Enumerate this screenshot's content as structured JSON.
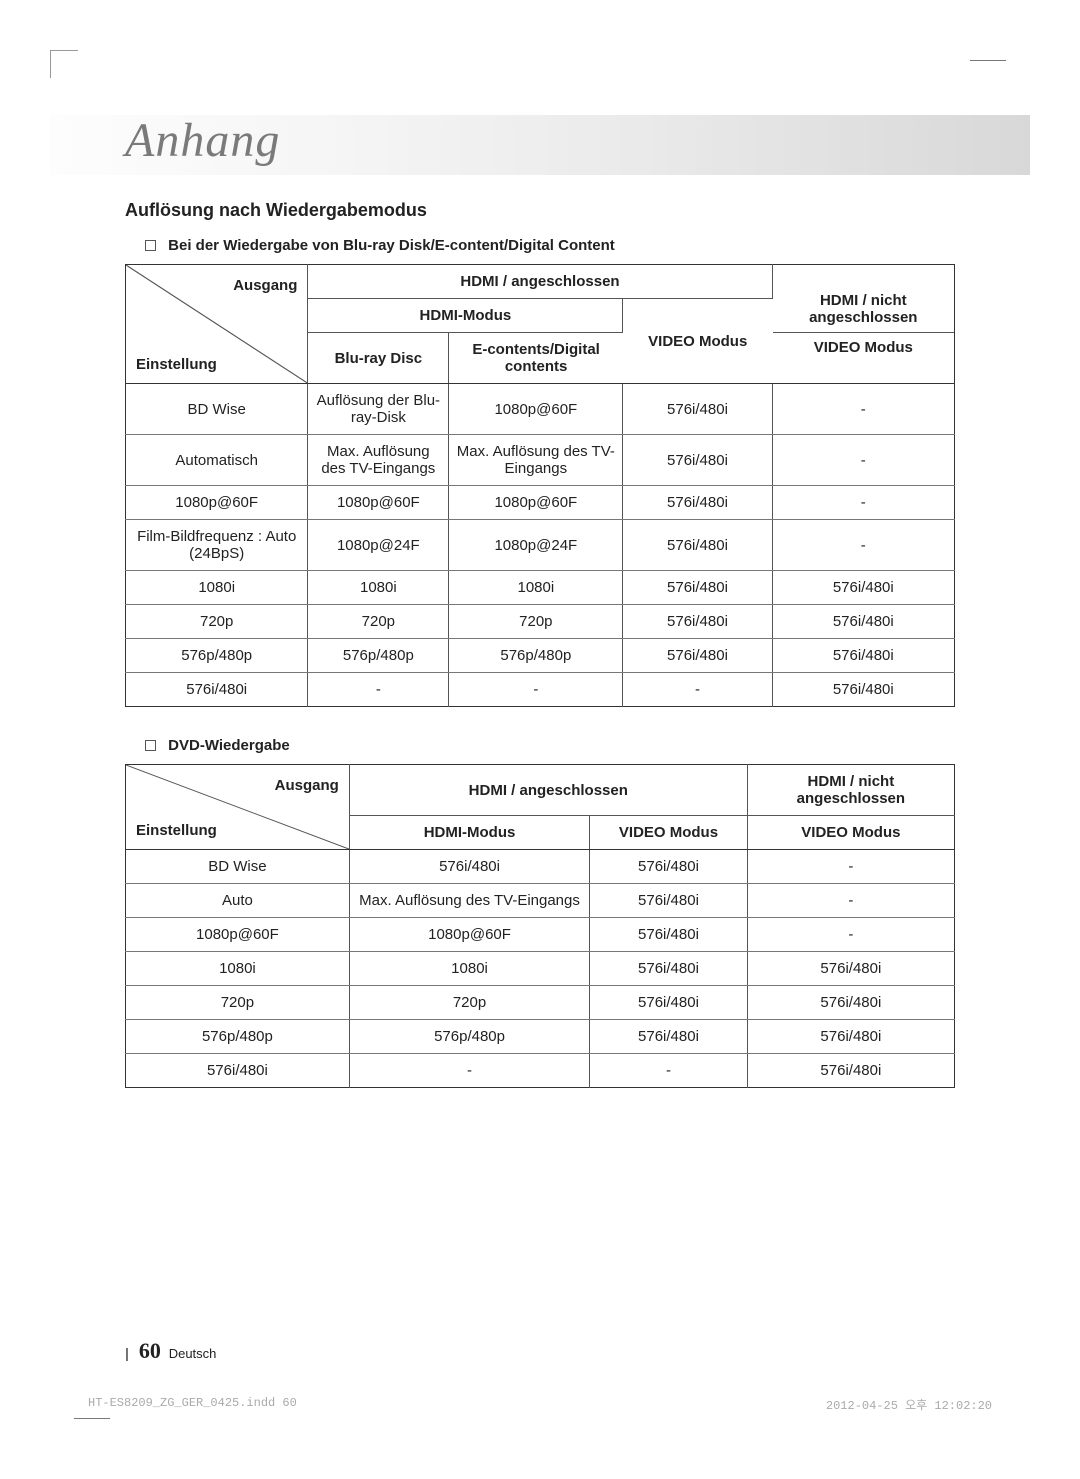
{
  "chapter_title": "Anhang",
  "section_title": "Auflösung nach Wiedergabemodus",
  "sub1_title": "Bei der Wiedergabe von Blu-ray Disk/E-content/Digital Content",
  "sub2_title": "DVD-Wiedergabe",
  "diag_top": "Ausgang",
  "diag_bot": "Einstellung",
  "t1": {
    "col_widths_pct": [
      22,
      17,
      21,
      18,
      22
    ],
    "h_hdmi_conn": "HDMI / angeschlossen",
    "h_hdmi_not": "HDMI / nicht angeschlossen",
    "h_hdmi_mode": "HDMI-Modus",
    "h_bluray": "Blu-ray Disc",
    "h_econtent": "E-contents/Digital contents",
    "h_video1": "VIDEO Modus",
    "h_video2": "VIDEO Modus",
    "rows": [
      [
        "BD Wise",
        "Auflösung der Blu-ray-Disk",
        "1080p@60F",
        "576i/480i",
        "-"
      ],
      [
        "Automatisch",
        "Max. Auflösung des TV-Eingangs",
        "Max. Auflösung des TV-Eingangs",
        "576i/480i",
        "-"
      ],
      [
        "1080p@60F",
        "1080p@60F",
        "1080p@60F",
        "576i/480i",
        "-"
      ],
      [
        "Film-Bildfrequenz : Auto (24BpS)",
        "1080p@24F",
        "1080p@24F",
        "576i/480i",
        "-"
      ],
      [
        "1080i",
        "1080i",
        "1080i",
        "576i/480i",
        "576i/480i"
      ],
      [
        "720p",
        "720p",
        "720p",
        "576i/480i",
        "576i/480i"
      ],
      [
        "576p/480p",
        "576p/480p",
        "576p/480p",
        "576i/480i",
        "576i/480i"
      ],
      [
        "576i/480i",
        "-",
        "-",
        "-",
        "576i/480i"
      ]
    ],
    "border_color": "#333333",
    "row_border_color": "#777777",
    "font_size_pt": 11
  },
  "t2": {
    "col_widths_pct": [
      27,
      29,
      19,
      25
    ],
    "h_hdmi_conn": "HDMI / angeschlossen",
    "h_hdmi_not": "HDMI / nicht angeschlossen",
    "h_hdmi_mode": "HDMI-Modus",
    "h_video1": "VIDEO Modus",
    "h_video2": "VIDEO Modus",
    "rows": [
      [
        "BD Wise",
        "576i/480i",
        "576i/480i",
        "-"
      ],
      [
        "Auto",
        "Max. Auflösung des TV-Eingangs",
        "576i/480i",
        "-"
      ],
      [
        "1080p@60F",
        "1080p@60F",
        "576i/480i",
        "-"
      ],
      [
        "1080i",
        "1080i",
        "576i/480i",
        "576i/480i"
      ],
      [
        "720p",
        "720p",
        "576i/480i",
        "576i/480i"
      ],
      [
        "576p/480p",
        "576p/480p",
        "576i/480i",
        "576i/480i"
      ],
      [
        "576i/480i",
        "-",
        "-",
        "576i/480i"
      ]
    ],
    "border_color": "#333333",
    "row_border_color": "#777777",
    "font_size_pt": 11
  },
  "footer": {
    "page_num": "60",
    "lang": "Deutsch"
  },
  "imprint": {
    "left": "HT-ES8209_ZG_GER_0425.indd   60",
    "right": "2012-04-25   오후 12:02:20"
  },
  "colors": {
    "page_bg": "#ffffff",
    "title_grey": "#7a7a7a",
    "band_gradient": [
      "#fdfdfd",
      "#d8d8d8"
    ]
  }
}
